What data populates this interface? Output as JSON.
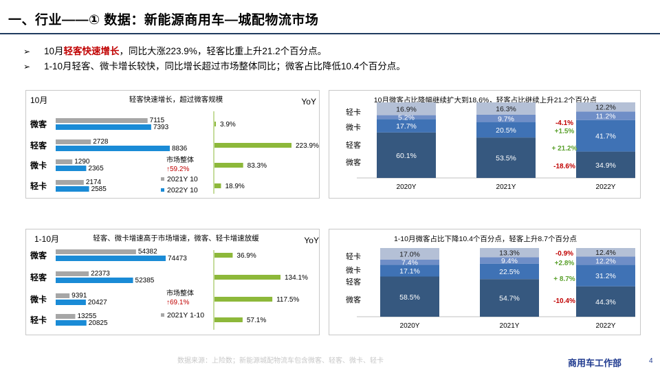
{
  "page_title": "一、行业——① 数据：新能源商用车—城配物流市场",
  "bullets": [
    {
      "marker": "➢",
      "pre": "10月",
      "highlight": "轻客快速增长",
      "post": "，同比大涨223.9%，轻客比重上升21.2个百分点。"
    },
    {
      "marker": "➢",
      "pre": "1-10月轻客、微卡增长较快，同比增长超过市场整体同比；微客占比降低10.4个百分点。",
      "highlight": "",
      "post": ""
    }
  ],
  "footer": {
    "source": "数据来源：上险数；新能源城配物流车包含微客、轻客、微卡、轻卡",
    "department": "商用车工作部",
    "page": "4"
  },
  "colors": {
    "y2021": "#a6a6a6",
    "y2022": "#1a8bd6",
    "yoy": "#8db83a",
    "share_light": "#b4c0d6",
    "share_mid": "#6f8ec7",
    "share_blue": "#3f72b5",
    "share_dark": "#36587f",
    "red": "#c00000",
    "green": "#5aa02c"
  },
  "chart_data": [
    {
      "type": "bar",
      "period": "10月",
      "title": "轻客快速增长，超过微客规模",
      "yoy_label": "YoY",
      "categories": [
        "微客",
        "轻客",
        "微卡",
        "轻卡"
      ],
      "series": [
        {
          "name": "2021Y 10",
          "values": [
            7115,
            2728,
            1290,
            2174
          ]
        },
        {
          "name": "2022Y 10",
          "values": [
            7393,
            8836,
            2365,
            2585
          ]
        }
      ],
      "yoy": [
        "3.9%",
        "223.9%",
        "83.3%",
        "18.9%"
      ],
      "yoy_values": [
        3.9,
        223.9,
        83.3,
        18.9
      ],
      "market_label": "市场整体",
      "market_yoy": "↑59.2%"
    },
    {
      "type": "bar",
      "stacked": true,
      "title": "10月微客占比降幅继续扩大到18.6%，轻客占比继续上升21.2个百分点",
      "categories": [
        "2020Y",
        "2021Y",
        "2022Y"
      ],
      "segments": [
        "微客",
        "轻客",
        "微卡",
        "轻卡"
      ],
      "series": [
        {
          "name": "微客",
          "values": [
            60.1,
            53.5,
            34.9
          ],
          "labels": [
            "60.1%",
            "53.5%",
            "34.9%"
          ]
        },
        {
          "name": "轻客",
          "values": [
            17.7,
            20.5,
            41.7
          ],
          "labels": [
            "17.7%",
            "20.5%",
            "41.7%"
          ]
        },
        {
          "name": "微卡",
          "values": [
            5.2,
            9.7,
            11.2
          ],
          "labels": [
            "5.2%",
            "9.7%",
            "11.2%"
          ]
        },
        {
          "name": "轻卡",
          "values": [
            16.9,
            16.3,
            12.2
          ],
          "labels": [
            "16.9%",
            "16.3%",
            "12.2%"
          ]
        }
      ],
      "changes": [
        "-18.6%",
        "+ 21.2%",
        "+1.5%",
        "-4.1%"
      ]
    },
    {
      "type": "bar",
      "period": "1-10月",
      "title": "轻客、微卡增速高于市场增速，微客、轻卡增速放缓",
      "yoy_label": "YoY",
      "categories": [
        "微客",
        "轻客",
        "微卡",
        "轻卡"
      ],
      "series": [
        {
          "name": "2021Y 1-10",
          "values": [
            54382,
            22373,
            9391,
            13255
          ]
        },
        {
          "name": "",
          "values": [
            74473,
            52385,
            20427,
            20825
          ]
        }
      ],
      "yoy": [
        "36.9%",
        "134.1%",
        "117.5%",
        "57.1%"
      ],
      "yoy_values": [
        36.9,
        134.1,
        117.5,
        57.1
      ],
      "market_label": "市场整体",
      "market_yoy": "↑69.1%"
    },
    {
      "type": "bar",
      "stacked": true,
      "title": "1-10月微客占比下降10.4个百分点，轻客上升8.7个百分点",
      "categories": [
        "2020Y",
        "2021Y",
        "2022Y"
      ],
      "segments": [
        "微客",
        "轻客",
        "微卡",
        "轻卡"
      ],
      "series": [
        {
          "name": "微客",
          "values": [
            58.5,
            54.7,
            44.3
          ],
          "labels": [
            "58.5%",
            "54.7%",
            "44.3%"
          ]
        },
        {
          "name": "轻客",
          "values": [
            17.1,
            22.5,
            31.2
          ],
          "labels": [
            "17.1%",
            "22.5%",
            "31.2%"
          ]
        },
        {
          "name": "微卡",
          "values": [
            7.4,
            9.4,
            12.2
          ],
          "labels": [
            "7.4%",
            "9.4%",
            "12.2%"
          ]
        },
        {
          "name": "轻卡",
          "values": [
            17.0,
            13.3,
            12.4
          ],
          "labels": [
            "17.0%",
            "13.3%",
            "12.4%"
          ]
        }
      ],
      "changes": [
        "-10.4%",
        "+ 8.7%",
        "+2.8%",
        "-0.9%"
      ]
    }
  ]
}
